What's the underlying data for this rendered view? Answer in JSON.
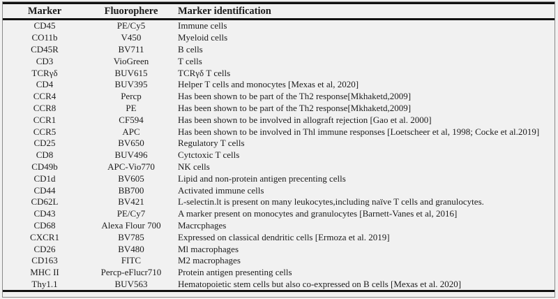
{
  "colors": {
    "page_background": "#f1f1f1",
    "text": "#1c1c1c",
    "table_rule": "#111111",
    "frame_border": "#8a8a8a"
  },
  "table": {
    "columns": [
      {
        "label": "Marker"
      },
      {
        "label": "Fluorophere"
      },
      {
        "label": "Marker identification"
      }
    ],
    "rows": [
      {
        "marker": "CD45",
        "fluorophore": "PE/Cy5",
        "identification": "Immune cells"
      },
      {
        "marker": "CO11b",
        "fluorophore": "V450",
        "identification": "Myeloid cells"
      },
      {
        "marker": "CD45R",
        "fluorophore": "BV711",
        "identification": "B cells"
      },
      {
        "marker": "CD3",
        "fluorophore": "VioGreen",
        "identification": "T cells"
      },
      {
        "marker": "TCRγδ",
        "fluorophore": "BUV615",
        "identification": "TCRγδ T cells"
      },
      {
        "marker": "CD4",
        "fluorophore": "BUV395",
        "identification": "Helper T cells and monocytes [Mexas et al, 2020]"
      },
      {
        "marker": "CCR4",
        "fluorophore": "Percp",
        "identification": "Has been shown to be part of the Th2 response[Mkhaketd,2009]"
      },
      {
        "marker": "CCR8",
        "fluorophore": "PE",
        "identification": "Has been shown to be part of the Th2 response[Mkhaketd,2009]"
      },
      {
        "marker": "CCR1",
        "fluorophore": "CF594",
        "identification": "Has been shown to be involved in allograft rejection [Gao et al. 2000]"
      },
      {
        "marker": "CCR5",
        "fluorophore": "APC",
        "identification": "Has been shown to be involved in Thl immune responses [Loetscheer et al, 1998; Cocke et al.2019]"
      },
      {
        "marker": "CD25",
        "fluorophore": "BV650",
        "identification": "Regulatory T cells"
      },
      {
        "marker": "CD8",
        "fluorophore": "BUV496",
        "identification": "Cytctoxic T cells"
      },
      {
        "marker": "CD49b",
        "fluorophore": "APC-Vio770",
        "identification": "NK cells"
      },
      {
        "marker": "CD1d",
        "fluorophore": "BV605",
        "identification": "Lipid and non-protein antigen precenting cells"
      },
      {
        "marker": "CD44",
        "fluorophore": "BB700",
        "identification": "Activated immune cells"
      },
      {
        "marker": "CD62L",
        "fluorophore": "BV421",
        "identification": "L-selectin.lt is present on many leukocytes,including naïve T cells and granulocytes."
      },
      {
        "marker": "CD43",
        "fluorophore": "PE/Cy7",
        "identification": "A marker present on monocytes and granulocytes [Barnett-Vanes et al, 2016]"
      },
      {
        "marker": "CD68",
        "fluorophore": "Alexa Flour 700",
        "identification": "Macrcphages"
      },
      {
        "marker": "CXCR1",
        "fluorophore": "BV785",
        "identification": "Expressed on classical dendritic cells [Ermoza et al. 2019]"
      },
      {
        "marker": "CD26",
        "fluorophore": "BV480",
        "identification": "Ml macrophages"
      },
      {
        "marker": "CD163",
        "fluorophore": "FITC",
        "identification": "M2 macrophages"
      },
      {
        "marker": "MHC II",
        "fluorophore": "Percp-eFlucr710",
        "identification": "Protein antigen presenting cells"
      },
      {
        "marker": "Thy1.1",
        "fluorophore": "BUV563",
        "identification": "Hematopoietic stem cells but also co-expressed on B cells [Mexas et al. 2020]"
      }
    ]
  }
}
